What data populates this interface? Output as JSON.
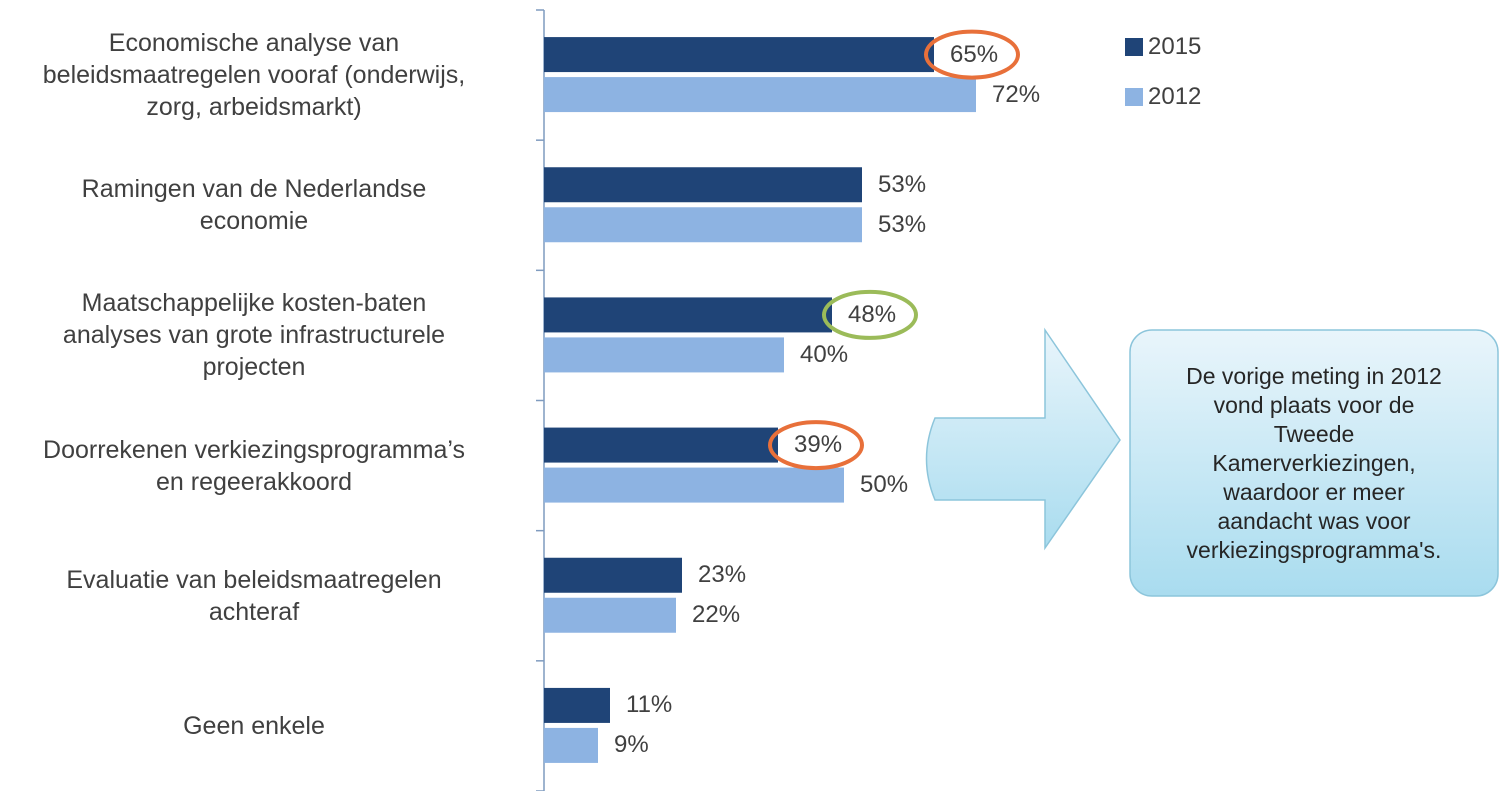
{
  "chart_data": {
    "type": "hbar",
    "categories": [
      "Economische analyse van\nbeleidsmaatregelen vooraf (onderwijs,\nzorg, arbeidsmarkt)",
      "Ramingen van de Nederlandse\neconomie",
      "Maatschappelijke kosten-baten\nanalyses van grote infrastructurele\nprojecten",
      "Doorrekenen verkiezingsprogramma’s\nen regeerakkoord",
      "Evaluatie van beleidsmaatregelen\nachteraf",
      "Geen enkele"
    ],
    "series": [
      {
        "name": "2015",
        "color": "#1f4477",
        "values": [
          65,
          53,
          48,
          39,
          23,
          11
        ],
        "value_labels": [
          "65%",
          "53%",
          "48%",
          "39%",
          "23%",
          "11%"
        ]
      },
      {
        "name": "2012",
        "color": "#8db3e2",
        "values": [
          72,
          53,
          40,
          50,
          22,
          9
        ],
        "value_labels": [
          "72%",
          "53%",
          "40%",
          "50%",
          "22%",
          "9%"
        ]
      }
    ],
    "xlim": [
      0,
      100
    ],
    "highlights": [
      {
        "series": 0,
        "index": 0,
        "color": "#e8703a"
      },
      {
        "series": 0,
        "index": 2,
        "color": "#9bbb59"
      },
      {
        "series": 0,
        "index": 3,
        "color": "#e8703a"
      }
    ],
    "callout": "De vorige meting in 2012\nvond plaats voor de\nTweede\nKamerverkiezingen,\nwaardoor er meer\naandacht was voor\nverkiezingsprogramma's."
  }
}
